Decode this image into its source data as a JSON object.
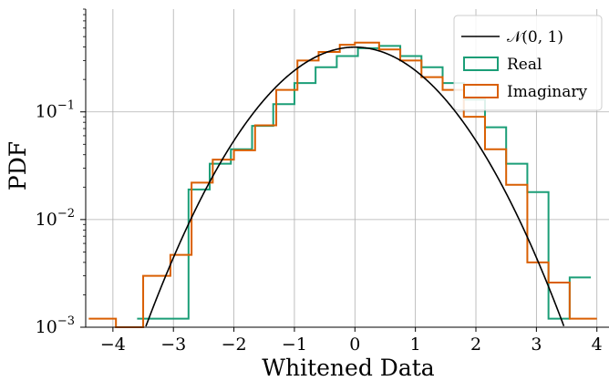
{
  "chart_data": {
    "type": "histogram",
    "xlabel": "Whitened Data",
    "ylabel": "PDF",
    "xlim": [
      -4.45,
      4.2
    ],
    "ylim": [
      0.001,
      0.9
    ],
    "yscale": "log",
    "grid": true,
    "legend_position": "top-right",
    "x_ticks": [
      -4,
      -3,
      -2,
      -1,
      0,
      1,
      2,
      3,
      4
    ],
    "x_tick_labels": [
      "−4",
      "−3",
      "−2",
      "−1",
      "0",
      "1",
      "2",
      "3",
      "4"
    ],
    "y_ticks": [
      {
        "value": 0.1,
        "base": "10",
        "exp": "−1"
      },
      {
        "value": 0.01,
        "base": "10",
        "exp": "−2"
      },
      {
        "value": 0.001,
        "base": "10",
        "exp": "−3"
      }
    ],
    "curve": {
      "name": "𝒩(0, 1)",
      "color": "#000000",
      "type": "standard-normal-pdf"
    },
    "series": [
      {
        "name": "Real",
        "color": "#1b9e77",
        "edges": [
          -3.6,
          -2.75,
          -2.4,
          -2.05,
          -1.7,
          -1.35,
          -1.0,
          -0.65,
          -0.3,
          0.05,
          0.4,
          0.75,
          1.1,
          1.45,
          1.8,
          2.15,
          2.5,
          2.85,
          3.2,
          3.55,
          3.9
        ],
        "values": [
          0.0012,
          0.019,
          0.033,
          0.045,
          0.074,
          0.118,
          0.185,
          0.26,
          0.33,
          0.39,
          0.41,
          0.33,
          0.26,
          0.185,
          0.13,
          0.072,
          0.033,
          0.018,
          0.0012,
          0.0029
        ]
      },
      {
        "name": "Imaginary",
        "color": "#d95f02",
        "edges": [
          -4.4,
          -3.95,
          -3.5,
          -3.05,
          -2.7,
          -2.35,
          -2.0,
          -1.65,
          -1.3,
          -0.95,
          -0.6,
          -0.25,
          0.0,
          0.4,
          0.75,
          1.1,
          1.45,
          1.8,
          2.15,
          2.5,
          2.85,
          3.2,
          3.55,
          4.0
        ],
        "values": [
          0.0012,
          0.001,
          0.003,
          0.0047,
          0.022,
          0.036,
          0.044,
          0.075,
          0.16,
          0.3,
          0.36,
          0.42,
          0.44,
          0.38,
          0.3,
          0.21,
          0.16,
          0.09,
          0.045,
          0.021,
          0.004,
          0.0026,
          0.0012
        ]
      }
    ]
  }
}
